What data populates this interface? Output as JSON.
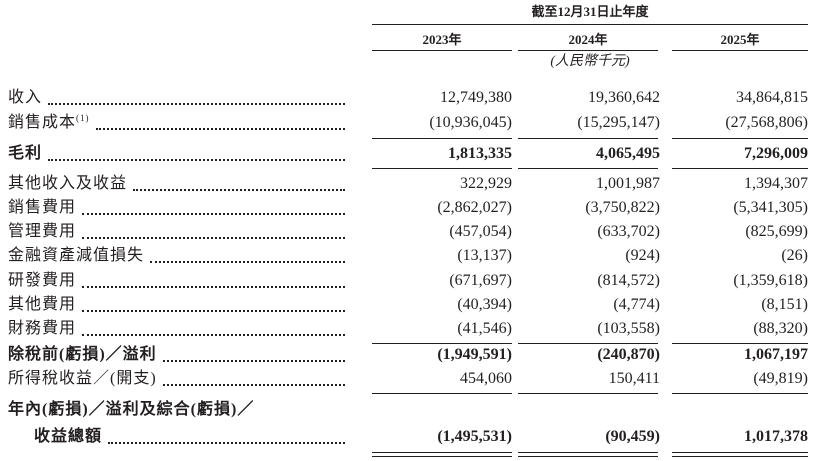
{
  "header": {
    "period": "截至12月31日止年度",
    "years": [
      "2023年",
      "2024年",
      "2025年"
    ],
    "unit": "(人民幣千元)"
  },
  "rows": [
    {
      "label": "收入",
      "values": [
        "12,749,380",
        "19,360,642",
        "34,864,815"
      ]
    },
    {
      "label": "銷售成本",
      "note": "(1)",
      "values": [
        "(10,936,045)",
        "(15,295,147)",
        "(27,568,806)"
      ]
    },
    {
      "label": "毛利",
      "bold": true,
      "values": [
        "1,813,335",
        "4,065,495",
        "7,296,009"
      ]
    },
    {
      "label": "其他收入及收益",
      "values": [
        "322,929",
        "1,001,987",
        "1,394,307"
      ]
    },
    {
      "label": "銷售費用",
      "values": [
        "(2,862,027)",
        "(3,750,822)",
        "(5,341,305)"
      ]
    },
    {
      "label": "管理費用",
      "values": [
        "(457,054)",
        "(633,702)",
        "(825,699)"
      ]
    },
    {
      "label": "金融資產減值損失",
      "values": [
        "(13,137)",
        "(924)",
        "(26)"
      ]
    },
    {
      "label": "研發費用",
      "values": [
        "(671,697)",
        "(814,572)",
        "(1,359,618)"
      ]
    },
    {
      "label": "其他費用",
      "values": [
        "(40,394)",
        "(4,774)",
        "(8,151)"
      ]
    },
    {
      "label": "財務費用",
      "values": [
        "(41,546)",
        "(103,558)",
        "(88,320)"
      ]
    },
    {
      "label": "除稅前(虧損)／溢利",
      "bold": true,
      "values": [
        "(1,949,591)",
        "(240,870)",
        "1,067,197"
      ]
    },
    {
      "label": "所得稅收益／(開支)",
      "values": [
        "454,060",
        "150,411",
        "(49,819)"
      ]
    },
    {
      "label": "年內(虧損)／溢利及綜合(虧損)／",
      "label_continued": "收益總額",
      "bold": true,
      "values": [
        "(1,495,531)",
        "(90,459)",
        "1,017,378"
      ]
    }
  ]
}
